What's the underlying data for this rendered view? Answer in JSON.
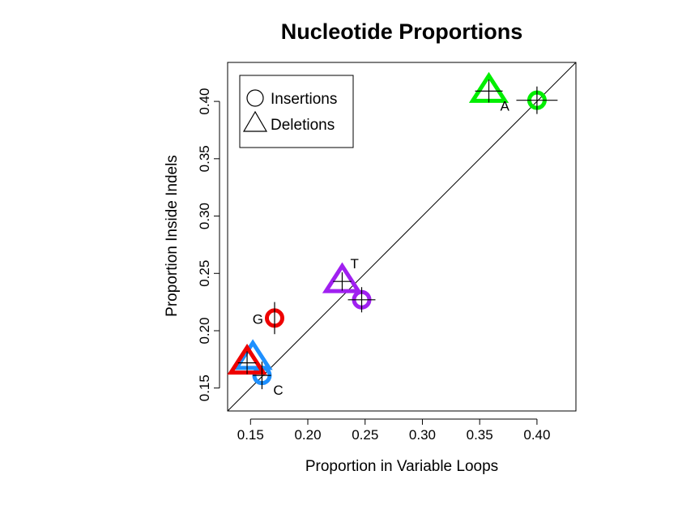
{
  "chart_data": {
    "type": "scatter",
    "title": "Nucleotide Proportions",
    "xlabel": "Proportion in Variable Loops",
    "ylabel": "Proportion Inside Indels",
    "xlim": [
      0.13,
      0.434
    ],
    "ylim": [
      0.13,
      0.434
    ],
    "x_ticks": [
      "0.15",
      "0.20",
      "0.25",
      "0.30",
      "0.35",
      "0.40"
    ],
    "y_ticks": [
      "0.15",
      "0.20",
      "0.25",
      "0.30",
      "0.35",
      "0.40"
    ],
    "reference_line": "y = x",
    "legend": {
      "position": "top-left",
      "entries": [
        {
          "label": "Insertions",
          "shape": "circle"
        },
        {
          "label": "Deletions",
          "shape": "triangle"
        }
      ]
    },
    "series": [
      {
        "shape": "circle",
        "points": [
          {
            "nucleotide": "A",
            "x": 0.4,
            "y": 0.401,
            "color": "#00ee00",
            "x_err": 0.018,
            "y_err": 0.012
          },
          {
            "nucleotide": "T",
            "x": 0.247,
            "y": 0.227,
            "color": "#a020f0",
            "x_err": 0.012,
            "y_err": 0.011
          },
          {
            "nucleotide": "G",
            "x": 0.171,
            "y": 0.211,
            "color": "#ee0000",
            "x_err": 0.0,
            "y_err": 0.014
          },
          {
            "nucleotide": "C",
            "x": 0.16,
            "y": 0.161,
            "color": "#1e90ff",
            "x_err": 0.008,
            "y_err": 0.012
          }
        ]
      },
      {
        "shape": "triangle",
        "points": [
          {
            "nucleotide": "A",
            "x": 0.358,
            "y": 0.409,
            "color": "#00ee00",
            "x_err": 0.012,
            "y_err": 0.01
          },
          {
            "nucleotide": "T",
            "x": 0.23,
            "y": 0.243,
            "color": "#a020f0",
            "x_err": 0.008,
            "y_err": 0.008
          },
          {
            "nucleotide": "C",
            "x": 0.152,
            "y": 0.176,
            "color": "#1e90ff",
            "x_err": 0.0,
            "y_err": 0.0
          },
          {
            "nucleotide": "G",
            "x": 0.147,
            "y": 0.172,
            "color": "#ee0000",
            "x_err": 0.008,
            "y_err": 0.01
          }
        ]
      }
    ],
    "point_labels": [
      {
        "text": "A",
        "x": 0.358,
        "y": 0.409,
        "pos": "below-right"
      },
      {
        "text": "T",
        "x": 0.23,
        "y": 0.243,
        "pos": "above-right"
      },
      {
        "text": "G",
        "x": 0.171,
        "y": 0.211,
        "pos": "left"
      },
      {
        "text": "C",
        "x": 0.16,
        "y": 0.161,
        "pos": "below-right"
      }
    ]
  }
}
